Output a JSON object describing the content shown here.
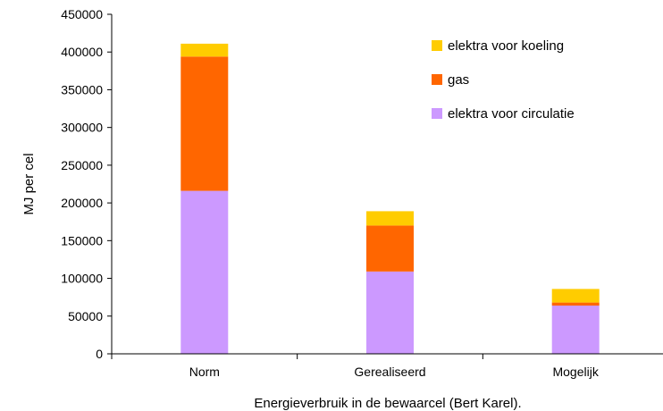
{
  "chart_data": {
    "type": "bar",
    "stacked": true,
    "categories": [
      "Norm",
      "Gerealiseerd",
      "Mogelijk"
    ],
    "series": [
      {
        "name": "elektra voor circulatie",
        "color": "#cc99ff",
        "values": [
          216000,
          109000,
          64000
        ]
      },
      {
        "name": "gas",
        "color": "#ff6600",
        "values": [
          178000,
          61000,
          4000
        ]
      },
      {
        "name": "elektra voor koeling",
        "color": "#ffcc00",
        "values": [
          17000,
          19000,
          18000
        ]
      }
    ],
    "title": "",
    "xlabel": "Energieverbruik in de bewaarcel (Bert Karel).",
    "ylabel": "MJ per cel",
    "ylim": [
      0,
      450000
    ],
    "yticks": [
      0,
      50000,
      100000,
      150000,
      200000,
      250000,
      300000,
      350000,
      400000,
      450000
    ],
    "grid": false,
    "legend_position": "top-right",
    "legend_order": [
      "elektra voor koeling",
      "gas",
      "elektra voor circulatie"
    ]
  }
}
